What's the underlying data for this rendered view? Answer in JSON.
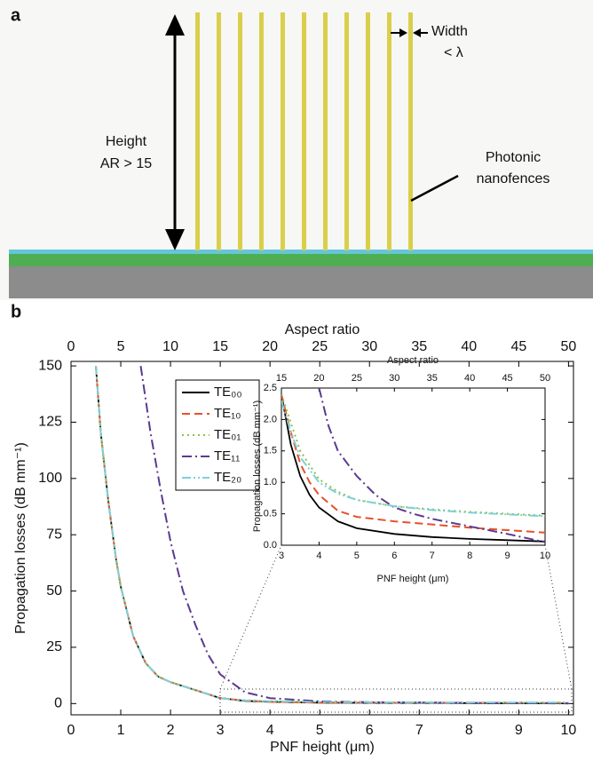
{
  "panel_a": {
    "label": "a",
    "height_label": "Height",
    "ar_label": "AR > 15",
    "width_label": "Width",
    "width_value": "< λ",
    "pnf_label_1": "Photonic",
    "pnf_label_2": "nanofences"
  },
  "chart_data": [
    {
      "type": "line",
      "panel_label": "b",
      "xlabel": "PNF height (μm)",
      "ylabel": "Propagation losses (dB mm⁻¹)",
      "x2label": "Aspect ratio",
      "xlim": [
        0,
        10.1
      ],
      "xticks": [
        0,
        1,
        2,
        3,
        4,
        5,
        6,
        7,
        8,
        9,
        10
      ],
      "ylim": [
        -5,
        152
      ],
      "yticks": [
        0,
        25,
        50,
        75,
        100,
        125,
        150
      ],
      "x2lim": [
        0,
        50.5
      ],
      "x2ticks": [
        0,
        5,
        10,
        15,
        20,
        25,
        30,
        35,
        40,
        45,
        50
      ],
      "series": [
        {
          "name": "TE₀₀",
          "color": "#000000",
          "style": "solid",
          "x": [
            0.5,
            0.6,
            0.75,
            0.9,
            1,
            1.25,
            1.5,
            1.75,
            2,
            2.5,
            3,
            3.5,
            4,
            5,
            6,
            8,
            10
          ],
          "values": [
            150,
            120,
            90,
            65,
            52,
            30,
            18,
            12,
            9.5,
            6,
            2.4,
            1.2,
            0.8,
            0.4,
            0.3,
            0.2,
            0.1
          ]
        },
        {
          "name": "TE₁₀",
          "color": "#e8502a",
          "style": "dashed",
          "x": [
            0.5,
            0.6,
            0.75,
            0.9,
            1,
            1.25,
            1.5,
            1.75,
            2,
            2.5,
            3,
            3.5,
            4,
            5,
            6,
            8,
            10
          ],
          "values": [
            150,
            120,
            90,
            65,
            52,
            30,
            18,
            12,
            9.5,
            6,
            2.4,
            1.3,
            0.8,
            0.45,
            0.38,
            0.28,
            0.2
          ]
        },
        {
          "name": "TE₀₁",
          "color": "#8cc04a",
          "style": "dotted",
          "x": [
            0.5,
            0.6,
            0.75,
            0.9,
            1,
            1.25,
            1.5,
            1.75,
            2,
            2.5,
            3,
            3.5,
            4,
            5,
            6,
            8,
            10
          ],
          "values": [
            150,
            120,
            90,
            65,
            52,
            30,
            18,
            12,
            9.5,
            6,
            2.4,
            1.5,
            1.05,
            0.72,
            0.62,
            0.53,
            0.47
          ]
        },
        {
          "name": "TE₁₁",
          "color": "#5b3a8f",
          "style": "dashdot",
          "x": [
            1.4,
            1.6,
            1.8,
            2,
            2.25,
            2.5,
            2.75,
            3,
            3.5,
            4,
            5,
            6,
            8,
            10
          ],
          "values": [
            150,
            120,
            95,
            72,
            50,
            35,
            22,
            13,
            5,
            2.4,
            1,
            0.6,
            0.3,
            0.05
          ]
        },
        {
          "name": "TE₂₀",
          "color": "#7fd0d8",
          "style": "dashdotdot",
          "x": [
            0.5,
            0.6,
            0.75,
            0.9,
            1,
            1.25,
            1.5,
            1.75,
            2,
            2.5,
            3,
            3.5,
            4,
            5,
            6,
            8,
            10
          ],
          "values": [
            150,
            120,
            90,
            65,
            52,
            30,
            18,
            12,
            9.5,
            6,
            2.3,
            1.4,
            1,
            0.72,
            0.62,
            0.52,
            0.46
          ]
        }
      ]
    },
    {
      "type": "line",
      "xlabel": "PNF height (μm)",
      "ylabel": "Propagation losses (dB mm⁻¹)",
      "x2label": "Aspect ratio",
      "xlim": [
        3,
        10
      ],
      "xticks": [
        3,
        4,
        5,
        6,
        7,
        8,
        9,
        10
      ],
      "ylim": [
        0,
        2.5
      ],
      "yticks": [
        {
          "value": 0,
          "label": "0.0"
        },
        0.5,
        {
          "value": 1,
          "label": "1.0"
        },
        1.5,
        {
          "value": 2,
          "label": "2.0"
        },
        2.5
      ],
      "x2lim": [
        15,
        50
      ],
      "x2ticks": [
        15,
        20,
        25,
        30,
        35,
        40,
        45,
        50
      ],
      "series": [
        {
          "x": [
            3,
            3.25,
            3.5,
            3.75,
            4,
            4.5,
            5,
            6,
            7,
            8,
            9,
            10
          ],
          "values": [
            2.4,
            1.6,
            1.1,
            0.8,
            0.6,
            0.38,
            0.27,
            0.18,
            0.13,
            0.1,
            0.08,
            0.06
          ]
        },
        {
          "x": [
            3,
            3.25,
            3.5,
            3.75,
            4,
            4.5,
            5,
            6,
            7,
            8,
            9,
            10
          ],
          "values": [
            2.4,
            1.8,
            1.3,
            1,
            0.8,
            0.55,
            0.45,
            0.38,
            0.33,
            0.28,
            0.24,
            0.2
          ]
        },
        {
          "x": [
            3,
            3.5,
            4,
            4.5,
            5,
            6,
            7,
            8,
            9,
            10
          ],
          "values": [
            2.4,
            1.5,
            1.05,
            0.85,
            0.72,
            0.62,
            0.57,
            0.53,
            0.5,
            0.47
          ]
        },
        {
          "x": [
            4,
            4.25,
            4.5,
            5,
            5.5,
            6,
            6.5,
            7,
            8,
            9,
            10
          ],
          "values": [
            2.5,
            1.9,
            1.5,
            1.1,
            0.8,
            0.6,
            0.5,
            0.42,
            0.3,
            0.18,
            0.05
          ]
        },
        {
          "x": [
            3,
            3.25,
            3.5,
            4,
            4.5,
            5,
            6,
            7,
            8,
            9,
            10
          ],
          "values": [
            2.3,
            1.8,
            1.4,
            1,
            0.82,
            0.72,
            0.62,
            0.56,
            0.52,
            0.49,
            0.46
          ]
        }
      ]
    }
  ]
}
